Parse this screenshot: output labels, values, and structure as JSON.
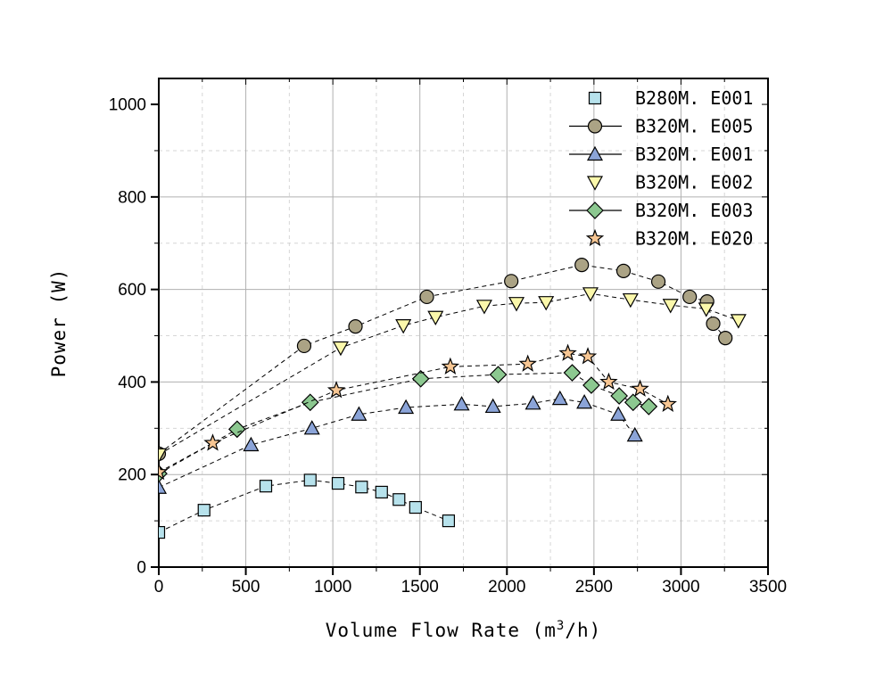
{
  "chart_data": {
    "type": "line",
    "title": "",
    "xlabel": "Volume Flow Rate (m³/h)",
    "xlabel_parts": [
      "Volume Flow Rate (m",
      "3",
      "/h)"
    ],
    "ylabel": "Power (W)",
    "xlim": [
      0,
      3500
    ],
    "ylim": [
      0,
      1056
    ],
    "xticks_major": [
      0,
      500,
      1000,
      1500,
      2000,
      2500,
      3000,
      3500
    ],
    "xticks_minor": [
      250,
      750,
      1250,
      1750,
      2250,
      2750,
      3250
    ],
    "yticks_major": [
      0,
      200,
      400,
      600,
      800,
      1000
    ],
    "yticks_minor": [
      100,
      300,
      500,
      700,
      900
    ],
    "grid": {
      "major_color": "#b0b0b0",
      "minor_color": "#d6d6d6",
      "minor_dash": "4 4",
      "on": true
    },
    "legend_position": "top-right-inside",
    "line_style": {
      "color": "#000000",
      "dash": "5 4",
      "width": 1
    },
    "marker_edge_color": "#000000",
    "series": [
      {
        "name": "B280M. E001",
        "marker": "square",
        "fill": "#b7e2ec",
        "legend_line": false,
        "points": [
          [
            0,
            75
          ],
          [
            260,
            123
          ],
          [
            615,
            175
          ],
          [
            870,
            188
          ],
          [
            1030,
            181
          ],
          [
            1165,
            173
          ],
          [
            1280,
            162
          ],
          [
            1380,
            146
          ],
          [
            1475,
            129
          ],
          [
            1665,
            100
          ]
        ]
      },
      {
        "name": "B320M. E005",
        "marker": "circle",
        "fill": "#aba385",
        "legend_line": true,
        "points": [
          [
            0,
            245
          ],
          [
            835,
            478
          ],
          [
            1130,
            520
          ],
          [
            1540,
            584
          ],
          [
            2025,
            618
          ],
          [
            2430,
            653
          ],
          [
            2670,
            640
          ],
          [
            2870,
            617
          ],
          [
            3050,
            584
          ],
          [
            3150,
            574
          ],
          [
            3185,
            526
          ],
          [
            3255,
            495
          ]
        ]
      },
      {
        "name": "B320M. E001",
        "marker": "triangle-up",
        "fill": "#8ba4d8",
        "legend_line": true,
        "points": [
          [
            0,
            172
          ],
          [
            530,
            264
          ],
          [
            880,
            300
          ],
          [
            1150,
            330
          ],
          [
            1420,
            345
          ],
          [
            1740,
            352
          ],
          [
            1920,
            347
          ],
          [
            2150,
            354
          ],
          [
            2305,
            364
          ],
          [
            2445,
            356
          ],
          [
            2640,
            330
          ],
          [
            2735,
            285
          ]
        ]
      },
      {
        "name": "B320M. E002",
        "marker": "triangle-down",
        "fill": "#fbf8ab",
        "legend_line": false,
        "points": [
          [
            0,
            243
          ],
          [
            1045,
            474
          ],
          [
            1405,
            522
          ],
          [
            1590,
            540
          ],
          [
            1870,
            564
          ],
          [
            2055,
            570
          ],
          [
            2225,
            572
          ],
          [
            2480,
            591
          ],
          [
            2710,
            578
          ],
          [
            2940,
            566
          ],
          [
            3145,
            558
          ],
          [
            3330,
            533
          ]
        ]
      },
      {
        "name": "B320M. E003",
        "marker": "diamond",
        "fill": "#8cc890",
        "legend_line": true,
        "points": [
          [
            0,
            202
          ],
          [
            450,
            298
          ],
          [
            870,
            356
          ],
          [
            1505,
            407
          ],
          [
            1950,
            416
          ],
          [
            2375,
            420
          ],
          [
            2485,
            393
          ],
          [
            2645,
            370
          ],
          [
            2725,
            356
          ],
          [
            2815,
            347
          ]
        ]
      },
      {
        "name": "B320M. E020",
        "marker": "star",
        "fill": "#f7c693",
        "legend_line": false,
        "points": [
          [
            0,
            205
          ],
          [
            310,
            268
          ],
          [
            1020,
            382
          ],
          [
            1675,
            433
          ],
          [
            2120,
            439
          ],
          [
            2350,
            462
          ],
          [
            2465,
            455
          ],
          [
            2585,
            400
          ],
          [
            2765,
            385
          ],
          [
            2925,
            352
          ]
        ]
      }
    ]
  }
}
